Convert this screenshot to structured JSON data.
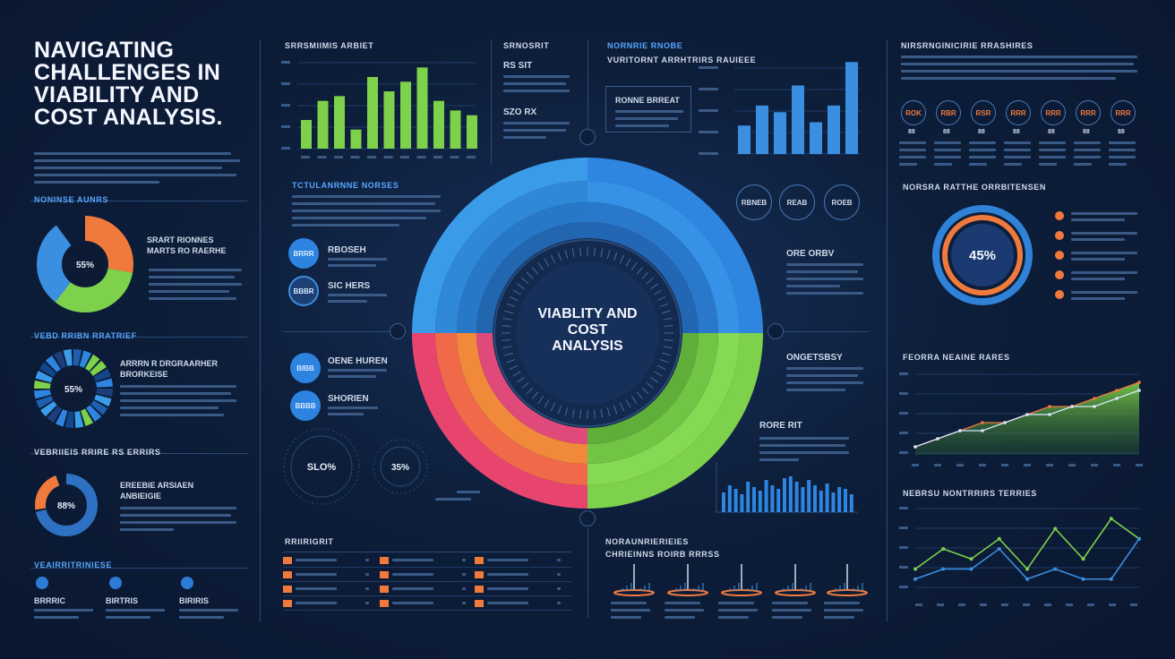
{
  "title": "NAVIGATING CHALLENGES IN VIABILITY AND COST ANALYSIS.",
  "center_label": "VIABLITY AND COST ANALYSIS",
  "left": {
    "donut1": {
      "value": "55%",
      "label": "SRART RIONNES MARTS RO RAERHE",
      "colors": [
        "#3b8fe0",
        "#f07a3c",
        "#7ed14a"
      ]
    },
    "donut2": {
      "value": "55%",
      "label": "ARRRN R DRGRAARHER BRORKEISE"
    },
    "donut3": {
      "value": "88%",
      "label": "EREEBIE ARSIAEN ANBIEIGIE"
    },
    "bottom_items": [
      "BRRRIC",
      "BIRTRIS",
      "BIRIRIS"
    ]
  },
  "col2": {
    "bar_heading": "SRRSMIIMIS ARBIET",
    "bar_chart": {
      "type": "bar",
      "values": [
        6,
        10,
        11,
        4,
        15,
        12,
        14,
        17,
        10,
        8,
        7
      ]
    },
    "mid_heading": "TCTULANRNNE NORSES",
    "item1": {
      "icon": "BRRR",
      "label": "RBOSEH"
    },
    "item2": {
      "icon": "BBBR",
      "label": "SIC HERS"
    },
    "item3": {
      "icon": "BIBB",
      "label": "OENE HUREN"
    },
    "item4": {
      "icon": "BBBB",
      "label": "SHORIEN"
    },
    "gauge1": "SLO%",
    "gauge2": "35%",
    "table_heading": "RRIIRIGRIT"
  },
  "col3": {
    "heading": "SRNOSRIT",
    "stat1": "RS SIT",
    "stat2": "SZO RX"
  },
  "col4": {
    "heading": "NORNRIE RNOBE",
    "subheading": "VURITORNT ARRHTRIRS RAUIEEE",
    "box_label": "RONNE BRREAT",
    "bar_chart": {
      "type": "bar",
      "values": [
        34,
        58,
        50,
        82,
        38,
        58,
        110
      ]
    },
    "icons": [
      "RBNEB",
      "REAB",
      "ROEB"
    ],
    "text1": "ORE ORBV",
    "text2": "ONGETSBSY",
    "text3": "RORE RIT",
    "bottom_heading": "NORAUNRIERIEIES",
    "bottom_sub": "CHRIEINNS ROIRB RRRSS"
  },
  "col5": {
    "heading": "NIRSRNGINICIRIE RRASHIRES",
    "icons": [
      "ROK",
      "RBR",
      "RSR",
      "RRR",
      "RRR",
      "RRR",
      "RRR"
    ],
    "target_heading": "NORSRA RATTHE ORRBITENSEN",
    "target_value": "45%",
    "line_heading": "FEORRA NEAINE RARES",
    "line_heading2": "NEBRSU NONTRRIRS TERRIES",
    "line_chart1": {
      "type": "line",
      "series": [
        {
          "values": [
            1,
            2,
            3,
            4,
            4,
            5,
            6,
            6,
            7,
            8,
            9
          ]
        },
        {
          "values": [
            1,
            2,
            3,
            3,
            4,
            5,
            5,
            6,
            6,
            7,
            8
          ]
        }
      ]
    },
    "line_chart2": {
      "type": "line",
      "series": [
        {
          "values": [
            2,
            4,
            3,
            5,
            2,
            6,
            3,
            7,
            5
          ]
        },
        {
          "values": [
            1,
            2,
            2,
            4,
            1,
            2,
            1,
            1,
            5
          ]
        }
      ]
    }
  }
}
